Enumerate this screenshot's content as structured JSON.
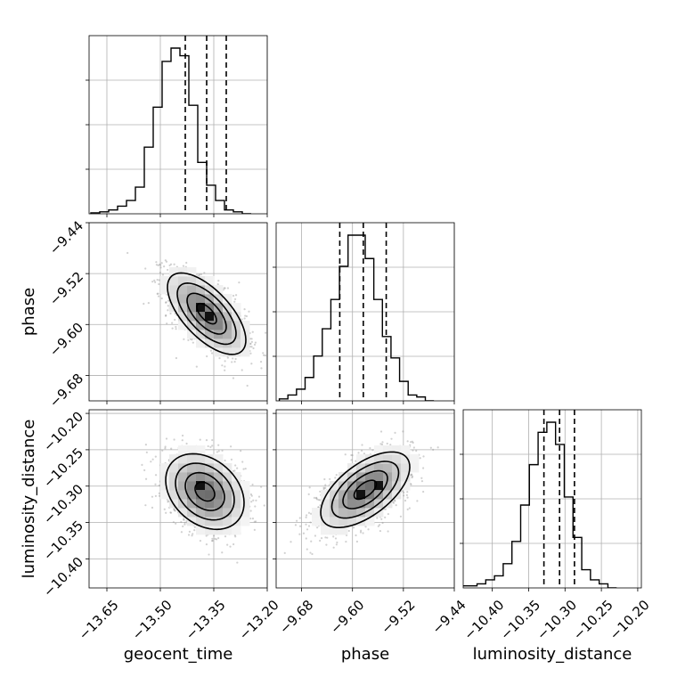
{
  "chart_data": {
    "type": "corner",
    "grid": true,
    "parameters": [
      {
        "name": "geocent_time",
        "label": "geocent_time",
        "range": [
          -13.7,
          -13.2
        ],
        "ticks": [
          -13.65,
          -13.5,
          -13.35,
          -13.2
        ],
        "tick_labels": [
          "−13.65",
          "−13.50",
          "−13.35",
          "−13.20"
        ],
        "quantiles": [
          -13.43,
          -13.37,
          -13.315
        ],
        "histogram": {
          "bin_width": 0.025,
          "bin_start": -13.695,
          "counts": [
            0.005,
            0.01,
            0.02,
            0.04,
            0.07,
            0.14,
            0.35,
            0.56,
            0.8,
            0.87,
            0.83,
            0.57,
            0.27,
            0.15,
            0.07,
            0.02,
            0.01,
            0.0
          ]
        }
      },
      {
        "name": "phase",
        "label": "phase",
        "range": [
          -9.72,
          -9.44
        ],
        "ticks": [
          -9.68,
          -9.6,
          -9.52,
          -9.44
        ],
        "tick_labels": [
          "−9.68",
          "−9.60",
          "−9.52",
          "−9.44"
        ],
        "quantiles": [
          -9.62,
          -9.583,
          -9.547
        ],
        "histogram": {
          "bin_width": 0.0135,
          "bin_start": -9.715,
          "counts": [
            0.01,
            0.03,
            0.06,
            0.12,
            0.23,
            0.37,
            0.52,
            0.69,
            0.85,
            0.85,
            0.73,
            0.52,
            0.33,
            0.22,
            0.1,
            0.03,
            0.02,
            0.0
          ]
        }
      },
      {
        "name": "luminosity_distance",
        "label": "luminosity_distance",
        "range": [
          -10.44,
          -10.195
        ],
        "ticks": [
          -10.4,
          -10.35,
          -10.3,
          -10.25,
          -10.2
        ],
        "tick_labels": [
          "−10.40",
          "−10.35",
          "−10.30",
          "−10.25",
          "−10.20"
        ],
        "quantiles": [
          -10.329,
          -10.3075,
          -10.287
        ],
        "histogram": {
          "bin_width": 0.012,
          "bin_start": -10.445,
          "counts": [
            0.01,
            0.01,
            0.02,
            0.04,
            0.06,
            0.12,
            0.23,
            0.41,
            0.61,
            0.77,
            0.82,
            0.71,
            0.45,
            0.25,
            0.09,
            0.04,
            0.02,
            0.0
          ]
        }
      }
    ],
    "pairs": [
      {
        "x": "geocent_time",
        "y": "phase",
        "center": [
          -13.37,
          -9.583
        ],
        "sigma": [
          0.055,
          0.032
        ],
        "correlation": -0.65,
        "peak_cells": [
          [
            -13.375,
            -9.568
          ],
          [
            -13.355,
            -9.582
          ]
        ]
      },
      {
        "x": "geocent_time",
        "y": "luminosity_distance",
        "center": [
          -13.375,
          -10.3075
        ],
        "sigma": [
          0.055,
          0.026
        ],
        "correlation": -0.3,
        "peak_cells": [
          [
            -13.375,
            -10.297
          ]
        ]
      },
      {
        "x": "phase",
        "y": "luminosity_distance",
        "center": [
          -9.58,
          -10.305
        ],
        "sigma": [
          0.035,
          0.026
        ],
        "correlation": 0.6,
        "peak_cells": [
          [
            -9.582,
            -10.311
          ],
          [
            -9.562,
            -10.297
          ]
        ]
      }
    ]
  }
}
